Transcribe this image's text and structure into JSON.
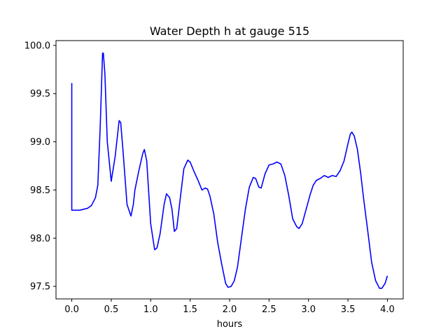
{
  "chart_data": {
    "type": "line",
    "title": "Water Depth h at gauge 515",
    "xlabel": "hours",
    "ylabel": "",
    "xlim": [
      -0.2,
      4.2
    ],
    "ylim": [
      97.37,
      100.05
    ],
    "xticks": [
      0.0,
      0.5,
      1.0,
      1.5,
      2.0,
      2.5,
      3.0,
      3.5,
      4.0
    ],
    "xtick_labels": [
      "0.0",
      "0.5",
      "1.0",
      "1.5",
      "2.0",
      "2.5",
      "3.0",
      "3.5",
      "4.0"
    ],
    "yticks": [
      97.5,
      98.0,
      98.5,
      99.0,
      99.5,
      100.0
    ],
    "ytick_labels": [
      "97.5",
      "98.0",
      "98.5",
      "99.0",
      "99.5",
      "100.0"
    ],
    "grid": false,
    "series": [
      {
        "color": "#0000ff",
        "x": [
          0.0,
          0.0,
          0.01,
          0.1,
          0.2,
          0.25,
          0.3,
          0.33,
          0.36,
          0.39,
          0.4,
          0.42,
          0.45,
          0.5,
          0.55,
          0.6,
          0.62,
          0.65,
          0.7,
          0.75,
          0.78,
          0.8,
          0.85,
          0.9,
          0.92,
          0.95,
          1.0,
          1.05,
          1.08,
          1.12,
          1.17,
          1.2,
          1.24,
          1.27,
          1.3,
          1.33,
          1.37,
          1.42,
          1.47,
          1.5,
          1.55,
          1.6,
          1.65,
          1.69,
          1.72,
          1.75,
          1.8,
          1.85,
          1.9,
          1.95,
          1.98,
          2.02,
          2.06,
          2.1,
          2.15,
          2.2,
          2.25,
          2.3,
          2.33,
          2.37,
          2.4,
          2.45,
          2.5,
          2.55,
          2.6,
          2.65,
          2.7,
          2.75,
          2.8,
          2.85,
          2.88,
          2.92,
          2.97,
          3.02,
          3.06,
          3.1,
          3.15,
          3.2,
          3.25,
          3.3,
          3.35,
          3.4,
          3.45,
          3.5,
          3.53,
          3.55,
          3.58,
          3.62,
          3.66,
          3.7,
          3.75,
          3.8,
          3.85,
          3.9,
          3.93,
          3.97,
          4.0
        ],
        "y": [
          99.61,
          98.29,
          98.29,
          98.29,
          98.31,
          98.34,
          98.42,
          98.55,
          99.15,
          99.92,
          99.92,
          99.7,
          99.0,
          98.59,
          98.85,
          99.22,
          99.2,
          98.9,
          98.35,
          98.23,
          98.35,
          98.5,
          98.7,
          98.88,
          98.92,
          98.8,
          98.15,
          97.88,
          97.9,
          98.05,
          98.35,
          98.46,
          98.42,
          98.3,
          98.07,
          98.1,
          98.38,
          98.72,
          98.81,
          98.79,
          98.69,
          98.6,
          98.5,
          98.52,
          98.51,
          98.44,
          98.25,
          97.95,
          97.73,
          97.53,
          97.49,
          97.5,
          97.56,
          97.7,
          98.0,
          98.3,
          98.53,
          98.63,
          98.62,
          98.53,
          98.52,
          98.67,
          98.76,
          98.77,
          98.79,
          98.77,
          98.65,
          98.44,
          98.2,
          98.12,
          98.1,
          98.15,
          98.3,
          98.45,
          98.55,
          98.6,
          98.62,
          98.65,
          98.63,
          98.65,
          98.64,
          98.7,
          98.8,
          98.98,
          99.08,
          99.1,
          99.06,
          98.92,
          98.68,
          98.4,
          98.08,
          97.75,
          97.56,
          97.48,
          97.48,
          97.53,
          97.61
        ]
      }
    ]
  }
}
